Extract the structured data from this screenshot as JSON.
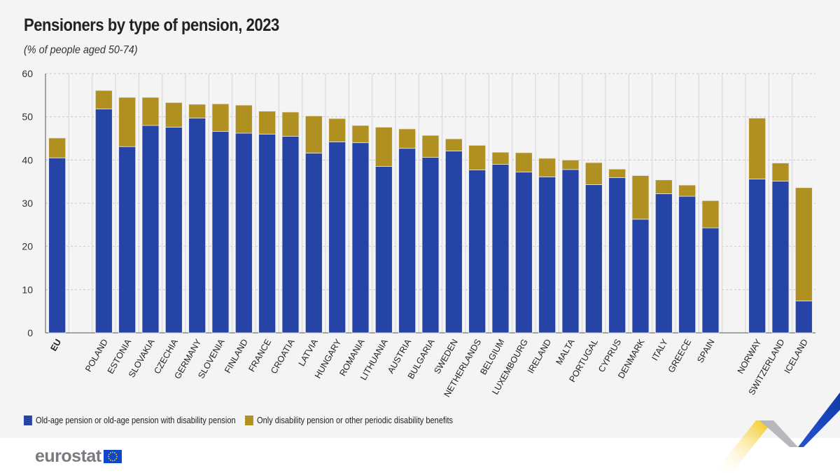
{
  "title": "Pensioners by type of pension, 2023",
  "subtitle": "(% of people aged 50-74)",
  "logo_text": "eurostat",
  "colors": {
    "old_age": "#2643a6",
    "disability": "#b09020",
    "background": "#f4f4f4"
  },
  "chart_data": {
    "type": "bar",
    "stacked": true,
    "title": "Pensioners by type of pension, 2023",
    "subtitle": "(% of people aged 50-74)",
    "categories": [
      "EU",
      "POLAND",
      "ESTONIA",
      "SLOVAKIA",
      "CZECHIA",
      "GERMANY",
      "SLOVENIA",
      "FINLAND",
      "FRANCE",
      "CROATIA",
      "LATVIA",
      "HUNGARY",
      "ROMANIA",
      "LITHUANIA",
      "AUSTRIA",
      "BULGARIA",
      "SWEDEN",
      "NETHERLANDS",
      "BELGIUM",
      "LUXEMBOURG",
      "IRELAND",
      "MALTA",
      "PORTUGAL",
      "CYPRUS",
      "DENMARK",
      "ITALY",
      "GREECE",
      "SPAIN",
      "NORWAY",
      "SWITZERLAND",
      "ICELAND"
    ],
    "series": [
      {
        "name": "Old-age pension or old-age pension with disability pension",
        "color": "#2643a6",
        "values": [
          40.5,
          51.8,
          43.1,
          48.0,
          47.6,
          49.7,
          46.6,
          46.2,
          46.0,
          45.5,
          41.6,
          44.2,
          44.0,
          38.5,
          42.7,
          40.6,
          42.1,
          37.7,
          39.0,
          37.2,
          36.1,
          37.8,
          34.3,
          35.9,
          26.3,
          32.2,
          31.6,
          24.3,
          35.6,
          35.1,
          7.4
        ]
      },
      {
        "name": "Only disability pension or other periodic disability benefits",
        "color": "#b09020",
        "values": [
          4.6,
          4.3,
          11.4,
          6.5,
          5.7,
          3.2,
          6.4,
          6.5,
          5.3,
          5.6,
          8.6,
          5.4,
          4.0,
          9.1,
          4.5,
          5.1,
          2.8,
          5.7,
          2.8,
          4.5,
          4.3,
          2.2,
          5.1,
          2.0,
          10.1,
          3.2,
          2.6,
          6.3,
          14.1,
          4.2,
          26.2
        ]
      }
    ],
    "group_breaks_after": [
      "EU",
      "SPAIN"
    ],
    "ylim": [
      0,
      60
    ],
    "yticks": [
      0,
      10,
      20,
      30,
      40,
      50,
      60
    ],
    "grid": true,
    "legend_position": "bottom-left"
  }
}
